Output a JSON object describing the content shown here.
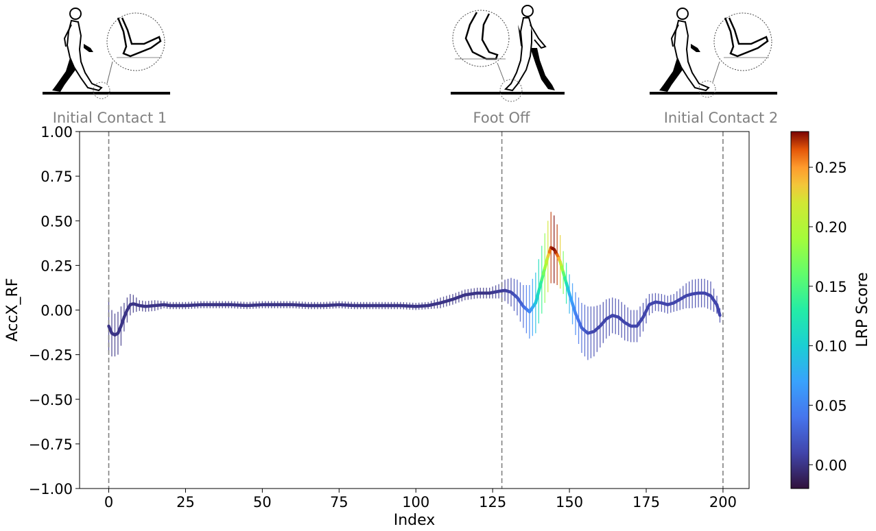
{
  "chart_data": {
    "type": "line",
    "xlabel": "Index",
    "ylabel": "AccX_RF",
    "xlim": [
      -9.5,
      208.5
    ],
    "ylim": [
      -1.0,
      1.0
    ],
    "x_ticks": [
      0,
      25,
      50,
      75,
      100,
      125,
      150,
      175,
      200
    ],
    "y_ticks": [
      1.0,
      0.75,
      0.5,
      0.25,
      0.0,
      -0.25,
      -0.5,
      -0.75,
      -1.0
    ],
    "y_tick_labels": [
      "1.00",
      "0.75",
      "0.50",
      "0.25",
      "0.00",
      "−0.25",
      "−0.50",
      "−0.75",
      "−1.00"
    ],
    "grid": false,
    "colorbar": {
      "label": "LRP Score",
      "colormap": "turbo",
      "range": [
        -0.02,
        0.28
      ],
      "ticks": [
        0.0,
        0.05,
        0.1,
        0.15,
        0.2,
        0.25
      ],
      "tick_labels": [
        "0.00",
        "0.05",
        "0.10",
        "0.15",
        "0.20",
        "0.25"
      ]
    },
    "events": [
      {
        "label": "Initial Contact 1",
        "x": 0
      },
      {
        "label": "Foot Off",
        "x": 128
      },
      {
        "label": "Initial Contact 2",
        "x": 200
      }
    ],
    "series": [
      {
        "points": [
          [
            0,
            -0.09,
            0.0,
            0.14
          ],
          [
            1,
            -0.13,
            0.0,
            0.13
          ],
          [
            2,
            -0.14,
            0.0,
            0.12
          ],
          [
            3,
            -0.13,
            0.0,
            0.12
          ],
          [
            4,
            -0.09,
            0.0,
            0.11
          ],
          [
            5,
            -0.04,
            0.0,
            0.08
          ],
          [
            6,
            0.0,
            0.0,
            0.07
          ],
          [
            7,
            0.03,
            0.0,
            0.06
          ],
          [
            8,
            0.035,
            0.0,
            0.05
          ],
          [
            9,
            0.03,
            0.0,
            0.04
          ],
          [
            10,
            0.025,
            0.0,
            0.03
          ],
          [
            12,
            0.02,
            0.0,
            0.03
          ],
          [
            15,
            0.025,
            0.0,
            0.03
          ],
          [
            18,
            0.03,
            0.0,
            0.02
          ],
          [
            20,
            0.025,
            0.0,
            0.02
          ],
          [
            25,
            0.025,
            0.0,
            0.02
          ],
          [
            30,
            0.03,
            0.0,
            0.02
          ],
          [
            35,
            0.03,
            0.0,
            0.02
          ],
          [
            40,
            0.03,
            0.0,
            0.02
          ],
          [
            45,
            0.025,
            0.0,
            0.02
          ],
          [
            50,
            0.03,
            0.0,
            0.02
          ],
          [
            55,
            0.03,
            0.0,
            0.02
          ],
          [
            60,
            0.03,
            0.0,
            0.02
          ],
          [
            65,
            0.025,
            0.0,
            0.02
          ],
          [
            70,
            0.025,
            0.0,
            0.02
          ],
          [
            75,
            0.03,
            0.0,
            0.02
          ],
          [
            80,
            0.025,
            0.0,
            0.02
          ],
          [
            85,
            0.025,
            0.0,
            0.02
          ],
          [
            90,
            0.025,
            0.0,
            0.02
          ],
          [
            95,
            0.025,
            0.0,
            0.02
          ],
          [
            100,
            0.02,
            0.0,
            0.02
          ],
          [
            104,
            0.025,
            0.0,
            0.02
          ],
          [
            108,
            0.04,
            0.0,
            0.03
          ],
          [
            112,
            0.06,
            0.0,
            0.03
          ],
          [
            116,
            0.085,
            0.0,
            0.03
          ],
          [
            120,
            0.095,
            0.0,
            0.03
          ],
          [
            124,
            0.095,
            0.0,
            0.03
          ],
          [
            127,
            0.105,
            0.005,
            0.04
          ],
          [
            129,
            0.11,
            0.005,
            0.06
          ],
          [
            131,
            0.1,
            0.01,
            0.08
          ],
          [
            133,
            0.07,
            0.02,
            0.1
          ],
          [
            135,
            0.02,
            0.03,
            0.12
          ],
          [
            137,
            -0.01,
            0.05,
            0.15
          ],
          [
            139,
            0.04,
            0.09,
            0.17
          ],
          [
            141,
            0.17,
            0.14,
            0.19
          ],
          [
            143,
            0.3,
            0.22,
            0.2
          ],
          [
            144,
            0.35,
            0.27,
            0.2
          ],
          [
            145,
            0.34,
            0.28,
            0.19
          ],
          [
            146,
            0.31,
            0.27,
            0.17
          ],
          [
            147,
            0.27,
            0.23,
            0.15
          ],
          [
            148,
            0.21,
            0.17,
            0.12
          ],
          [
            150,
            0.09,
            0.08,
            0.11
          ],
          [
            152,
            -0.02,
            0.05,
            0.12
          ],
          [
            154,
            -0.1,
            0.03,
            0.14
          ],
          [
            156,
            -0.13,
            0.02,
            0.15
          ],
          [
            158,
            -0.12,
            0.01,
            0.14
          ],
          [
            160,
            -0.09,
            0.01,
            0.12
          ],
          [
            162,
            -0.05,
            0.01,
            0.11
          ],
          [
            164,
            -0.03,
            0.01,
            0.1
          ],
          [
            166,
            -0.04,
            0.01,
            0.1
          ],
          [
            168,
            -0.07,
            0.01,
            0.1
          ],
          [
            170,
            -0.09,
            0.01,
            0.09
          ],
          [
            172,
            -0.09,
            0.01,
            0.09
          ],
          [
            174,
            -0.04,
            0.01,
            0.08
          ],
          [
            176,
            0.03,
            0.01,
            0.06
          ],
          [
            178,
            0.045,
            0.01,
            0.05
          ],
          [
            180,
            0.04,
            0.01,
            0.05
          ],
          [
            182,
            0.03,
            0.01,
            0.05
          ],
          [
            184,
            0.04,
            0.01,
            0.05
          ],
          [
            186,
            0.06,
            0.01,
            0.06
          ],
          [
            188,
            0.08,
            0.01,
            0.07
          ],
          [
            190,
            0.09,
            0.01,
            0.08
          ],
          [
            192,
            0.095,
            0.01,
            0.08
          ],
          [
            194,
            0.095,
            0.01,
            0.08
          ],
          [
            196,
            0.08,
            0.01,
            0.08
          ],
          [
            198,
            0.03,
            0.01,
            0.05
          ],
          [
            199,
            -0.03,
            0.01,
            0.04
          ]
        ],
        "point_fields": [
          "x",
          "y",
          "lrp",
          "std"
        ]
      }
    ]
  },
  "phase_labels": {
    "ic1": "Initial Contact 1",
    "fo": "Foot Off",
    "ic2": "Initial Contact 2"
  },
  "icons": [
    "walking-figure-heel-strike-icon",
    "walking-figure-toe-off-icon",
    "walking-figure-heel-strike-icon"
  ],
  "colors": {
    "axis": "#000000",
    "event_line": "#808080",
    "phase_label": "#808080",
    "turbo_low": "#30123b",
    "turbo_high": "#7a0403"
  }
}
